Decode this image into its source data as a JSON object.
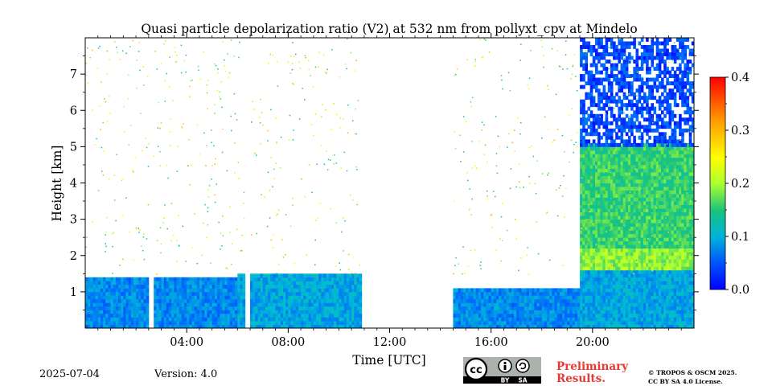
{
  "chart_data": {
    "type": "heatmap",
    "title": "Quasi particle depolarization ratio (V2) at 532 nm from pollyxt_cpv at Mindelo",
    "xlabel": "Time [UTC]",
    "ylabel": "Height [km]",
    "xlim": [
      "00:00",
      "24:00"
    ],
    "ylim": [
      0,
      8
    ],
    "x_ticks": [
      "04:00",
      "08:00",
      "12:00",
      "16:00",
      "20:00"
    ],
    "y_ticks": [
      "1",
      "2",
      "3",
      "4",
      "5",
      "6",
      "7"
    ],
    "colorbar": {
      "ticks": [
        "0.0",
        "0.1",
        "0.2",
        "0.3",
        "0.4"
      ],
      "vmin": 0.0,
      "vmax": 0.4,
      "colormap": "jet"
    },
    "colors": [
      "#0000ff",
      "#0066ff",
      "#00bcd4",
      "#19c37d",
      "#adff2f",
      "#ffff00",
      "#ff9800",
      "#ff0000"
    ],
    "data_gaps_utc": [
      [
        "02:30",
        "02:40"
      ],
      [
        "06:15",
        "06:25"
      ],
      [
        "10:50",
        "12:45"
      ],
      [
        "12:45",
        "14:30"
      ]
    ],
    "layers": [
      {
        "time": [
          "00:00",
          "06:00"
        ],
        "height_km": [
          0,
          1.4
        ],
        "depol": 0.08
      },
      {
        "time": [
          "06:00",
          "10:50"
        ],
        "height_km": [
          0,
          1.5
        ],
        "depol": 0.1
      },
      {
        "time": [
          "14:30",
          "19:30"
        ],
        "height_km": [
          0,
          1.0
        ],
        "depol": 0.08
      },
      {
        "time": [
          "19:30",
          "24:00"
        ],
        "height_km": [
          0,
          1.6
        ],
        "depol": 0.1
      },
      {
        "time": [
          "19:30",
          "24:00"
        ],
        "height_km": [
          1.6,
          2.2
        ],
        "depol": 0.22
      },
      {
        "time": [
          "19:30",
          "24:00"
        ],
        "height_km": [
          2.2,
          5.0
        ],
        "depol": 0.18
      },
      {
        "time": [
          "19:30",
          "24:00"
        ],
        "height_km": [
          5.0,
          8.0
        ],
        "depol": 0.04
      }
    ]
  },
  "footer": {
    "date": "2025-07-04",
    "version": "Version: 4.0",
    "preliminary_line1": "Preliminary",
    "preliminary_line2": "Results.",
    "copyright_line1": "© TROPOS & OSCM 2025.",
    "copyright_line2": "CC BY SA 4.0 License."
  },
  "license_badge": {
    "letters": "cc",
    "by": "BY",
    "sa": "SA"
  }
}
